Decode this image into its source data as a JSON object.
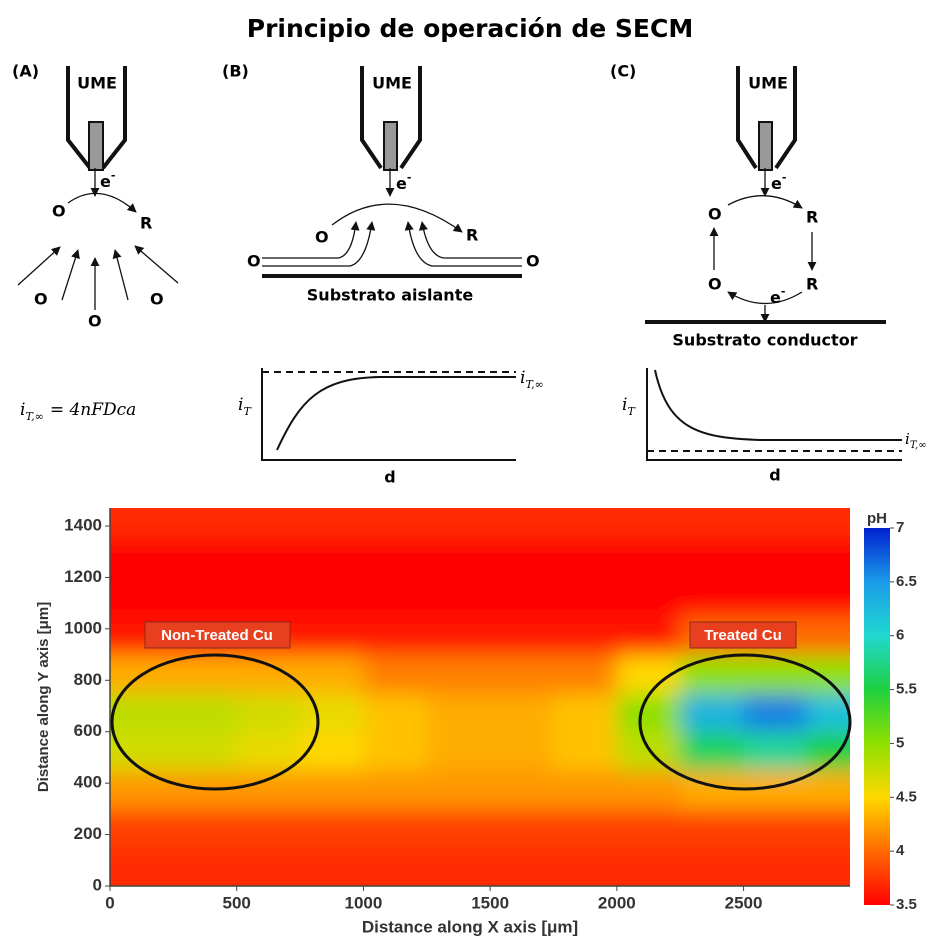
{
  "title": "Principio de operación de SECM",
  "panels": [
    {
      "label": "(A)",
      "electrode": "UME",
      "electrons": [
        {
          "base": "e",
          "sup": "-"
        }
      ],
      "species": [
        "O",
        "R",
        "O",
        "O",
        "O"
      ],
      "formula": {
        "symbol": "i",
        "sub": "T,∞",
        "rhs": "= 4nFDca"
      }
    },
    {
      "label": "(B)",
      "electrode": "UME",
      "electrons": [
        {
          "base": "e",
          "sup": "-"
        }
      ],
      "species": [
        "O",
        "R",
        "O",
        "O"
      ],
      "substrate": "Substrato aislante",
      "plot": {
        "y_label": {
          "base": "i",
          "sub": "T"
        },
        "x_label": "d",
        "limit_label": {
          "base": "i",
          "sub": "T,∞"
        }
      }
    },
    {
      "label": "(C)",
      "electrode": "UME",
      "electrons": [
        {
          "base": "e",
          "sup": "-"
        },
        {
          "base": "e",
          "sup": "-"
        }
      ],
      "species": [
        "O",
        "R",
        "R",
        "O"
      ],
      "substrate": "Substrato conductor",
      "plot": {
        "y_label": {
          "base": "i",
          "sub": "T"
        },
        "x_label": "d",
        "limit_label": {
          "base": "i",
          "sub": "T,∞"
        }
      }
    }
  ],
  "chart_data": {
    "type": "heatmap",
    "x_label": "Distance along X axis [μm]",
    "y_label": "Distance along Y axis [μm]",
    "colorbar_label": "pH",
    "annotations": [
      "Non-Treated Cu",
      "Treated Cu"
    ],
    "x": [
      125,
      375,
      625,
      875,
      1125,
      1375,
      1625,
      1875,
      2125,
      2375,
      2625,
      2875
    ],
    "y": [
      75,
      225,
      375,
      525,
      675,
      825,
      975,
      1125,
      1275,
      1425
    ],
    "z": [
      [
        3.7,
        3.7,
        3.7,
        3.7,
        3.7,
        3.7,
        3.7,
        3.7,
        3.7,
        3.7,
        3.7,
        3.7
      ],
      [
        3.8,
        3.8,
        3.8,
        3.8,
        3.8,
        3.8,
        3.8,
        3.8,
        3.8,
        3.8,
        3.8,
        3.8
      ],
      [
        4.2,
        4.2,
        4.2,
        4.2,
        4.2,
        4.2,
        4.2,
        4.2,
        4.2,
        4.3,
        4.3,
        4.3
      ],
      [
        4.7,
        4.7,
        4.6,
        4.5,
        4.4,
        4.3,
        4.3,
        4.4,
        4.8,
        5.6,
        5.8,
        5.5
      ],
      [
        4.8,
        4.8,
        4.7,
        4.6,
        4.4,
        4.3,
        4.3,
        4.4,
        5.0,
        6.3,
        6.6,
        6.2
      ],
      [
        4.3,
        4.3,
        4.3,
        4.3,
        4.1,
        4.1,
        4.1,
        4.1,
        4.5,
        5.0,
        5.0,
        5.0
      ],
      [
        3.6,
        3.6,
        3.6,
        3.6,
        3.6,
        3.6,
        3.6,
        3.6,
        3.6,
        4.0,
        4.0,
        4.0
      ],
      [
        3.5,
        3.5,
        3.5,
        3.5,
        3.5,
        3.5,
        3.5,
        3.5,
        3.5,
        3.5,
        3.5,
        3.5
      ],
      [
        3.5,
        3.5,
        3.5,
        3.5,
        3.5,
        3.5,
        3.5,
        3.5,
        3.5,
        3.5,
        3.5,
        3.5
      ],
      [
        3.7,
        3.7,
        3.7,
        3.7,
        3.7,
        3.7,
        3.7,
        3.7,
        3.7,
        3.7,
        3.7,
        3.7
      ]
    ],
    "xlim": [
      0,
      2920
    ],
    "ylim": [
      0,
      1470
    ],
    "zlim": [
      3.5,
      7
    ],
    "xticks": [
      0,
      500,
      1000,
      1500,
      2000,
      2500
    ],
    "yticks": [
      0,
      200,
      400,
      600,
      800,
      1000,
      1200,
      1400
    ],
    "zticks": [
      3.5,
      4,
      4.5,
      5,
      5.5,
      6,
      6.5,
      7
    ],
    "colormap": [
      "#ff0000",
      "#ff6a00",
      "#ffd800",
      "#8fe000",
      "#1fd040",
      "#20d8d0",
      "#1a9be8",
      "#0020d0"
    ]
  }
}
